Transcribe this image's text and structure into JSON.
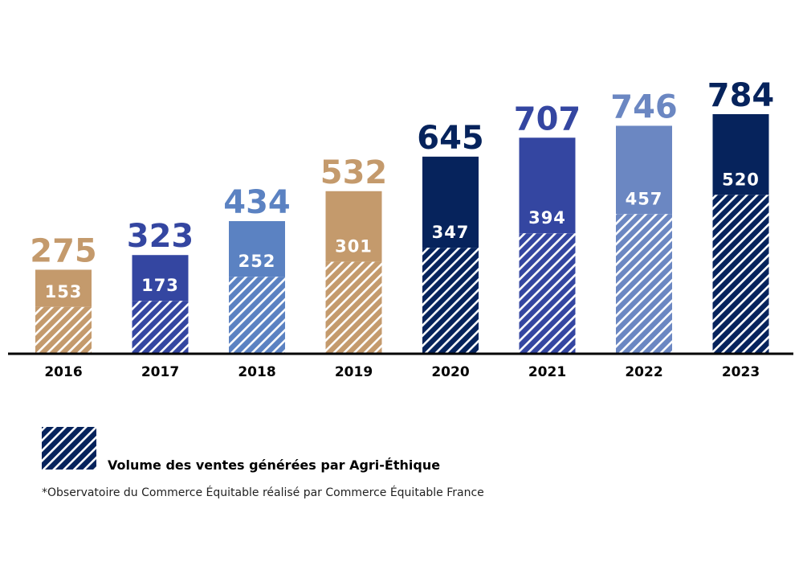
{
  "chart_data": {
    "type": "bar",
    "categories": [
      "2016",
      "2017",
      "2018",
      "2019",
      "2020",
      "2021",
      "2022",
      "2023"
    ],
    "series": [
      {
        "values": [
          275,
          323,
          434,
          532,
          645,
          707,
          746,
          784
        ]
      },
      {
        "name": "Volume des ventes générées par Agri-Éthique",
        "values": [
          153,
          173,
          252,
          301,
          347,
          394,
          457,
          520
        ]
      }
    ],
    "bar_colors": [
      "#c49a6c",
      "#3446a1",
      "#5b82c2",
      "#c49a6c",
      "#06235c",
      "#3446a1",
      "#6b87c2",
      "#06235c"
    ],
    "ylim": [
      0,
      784
    ],
    "grid": false,
    "legend": {
      "label": "Volume des ventes générées par Agri-Éthique",
      "swatch_color": "#06235c",
      "position": "bottom-left"
    },
    "footnote": "*Observatoire du Commerce Équitable réalisé par Commerce Équitable France"
  }
}
